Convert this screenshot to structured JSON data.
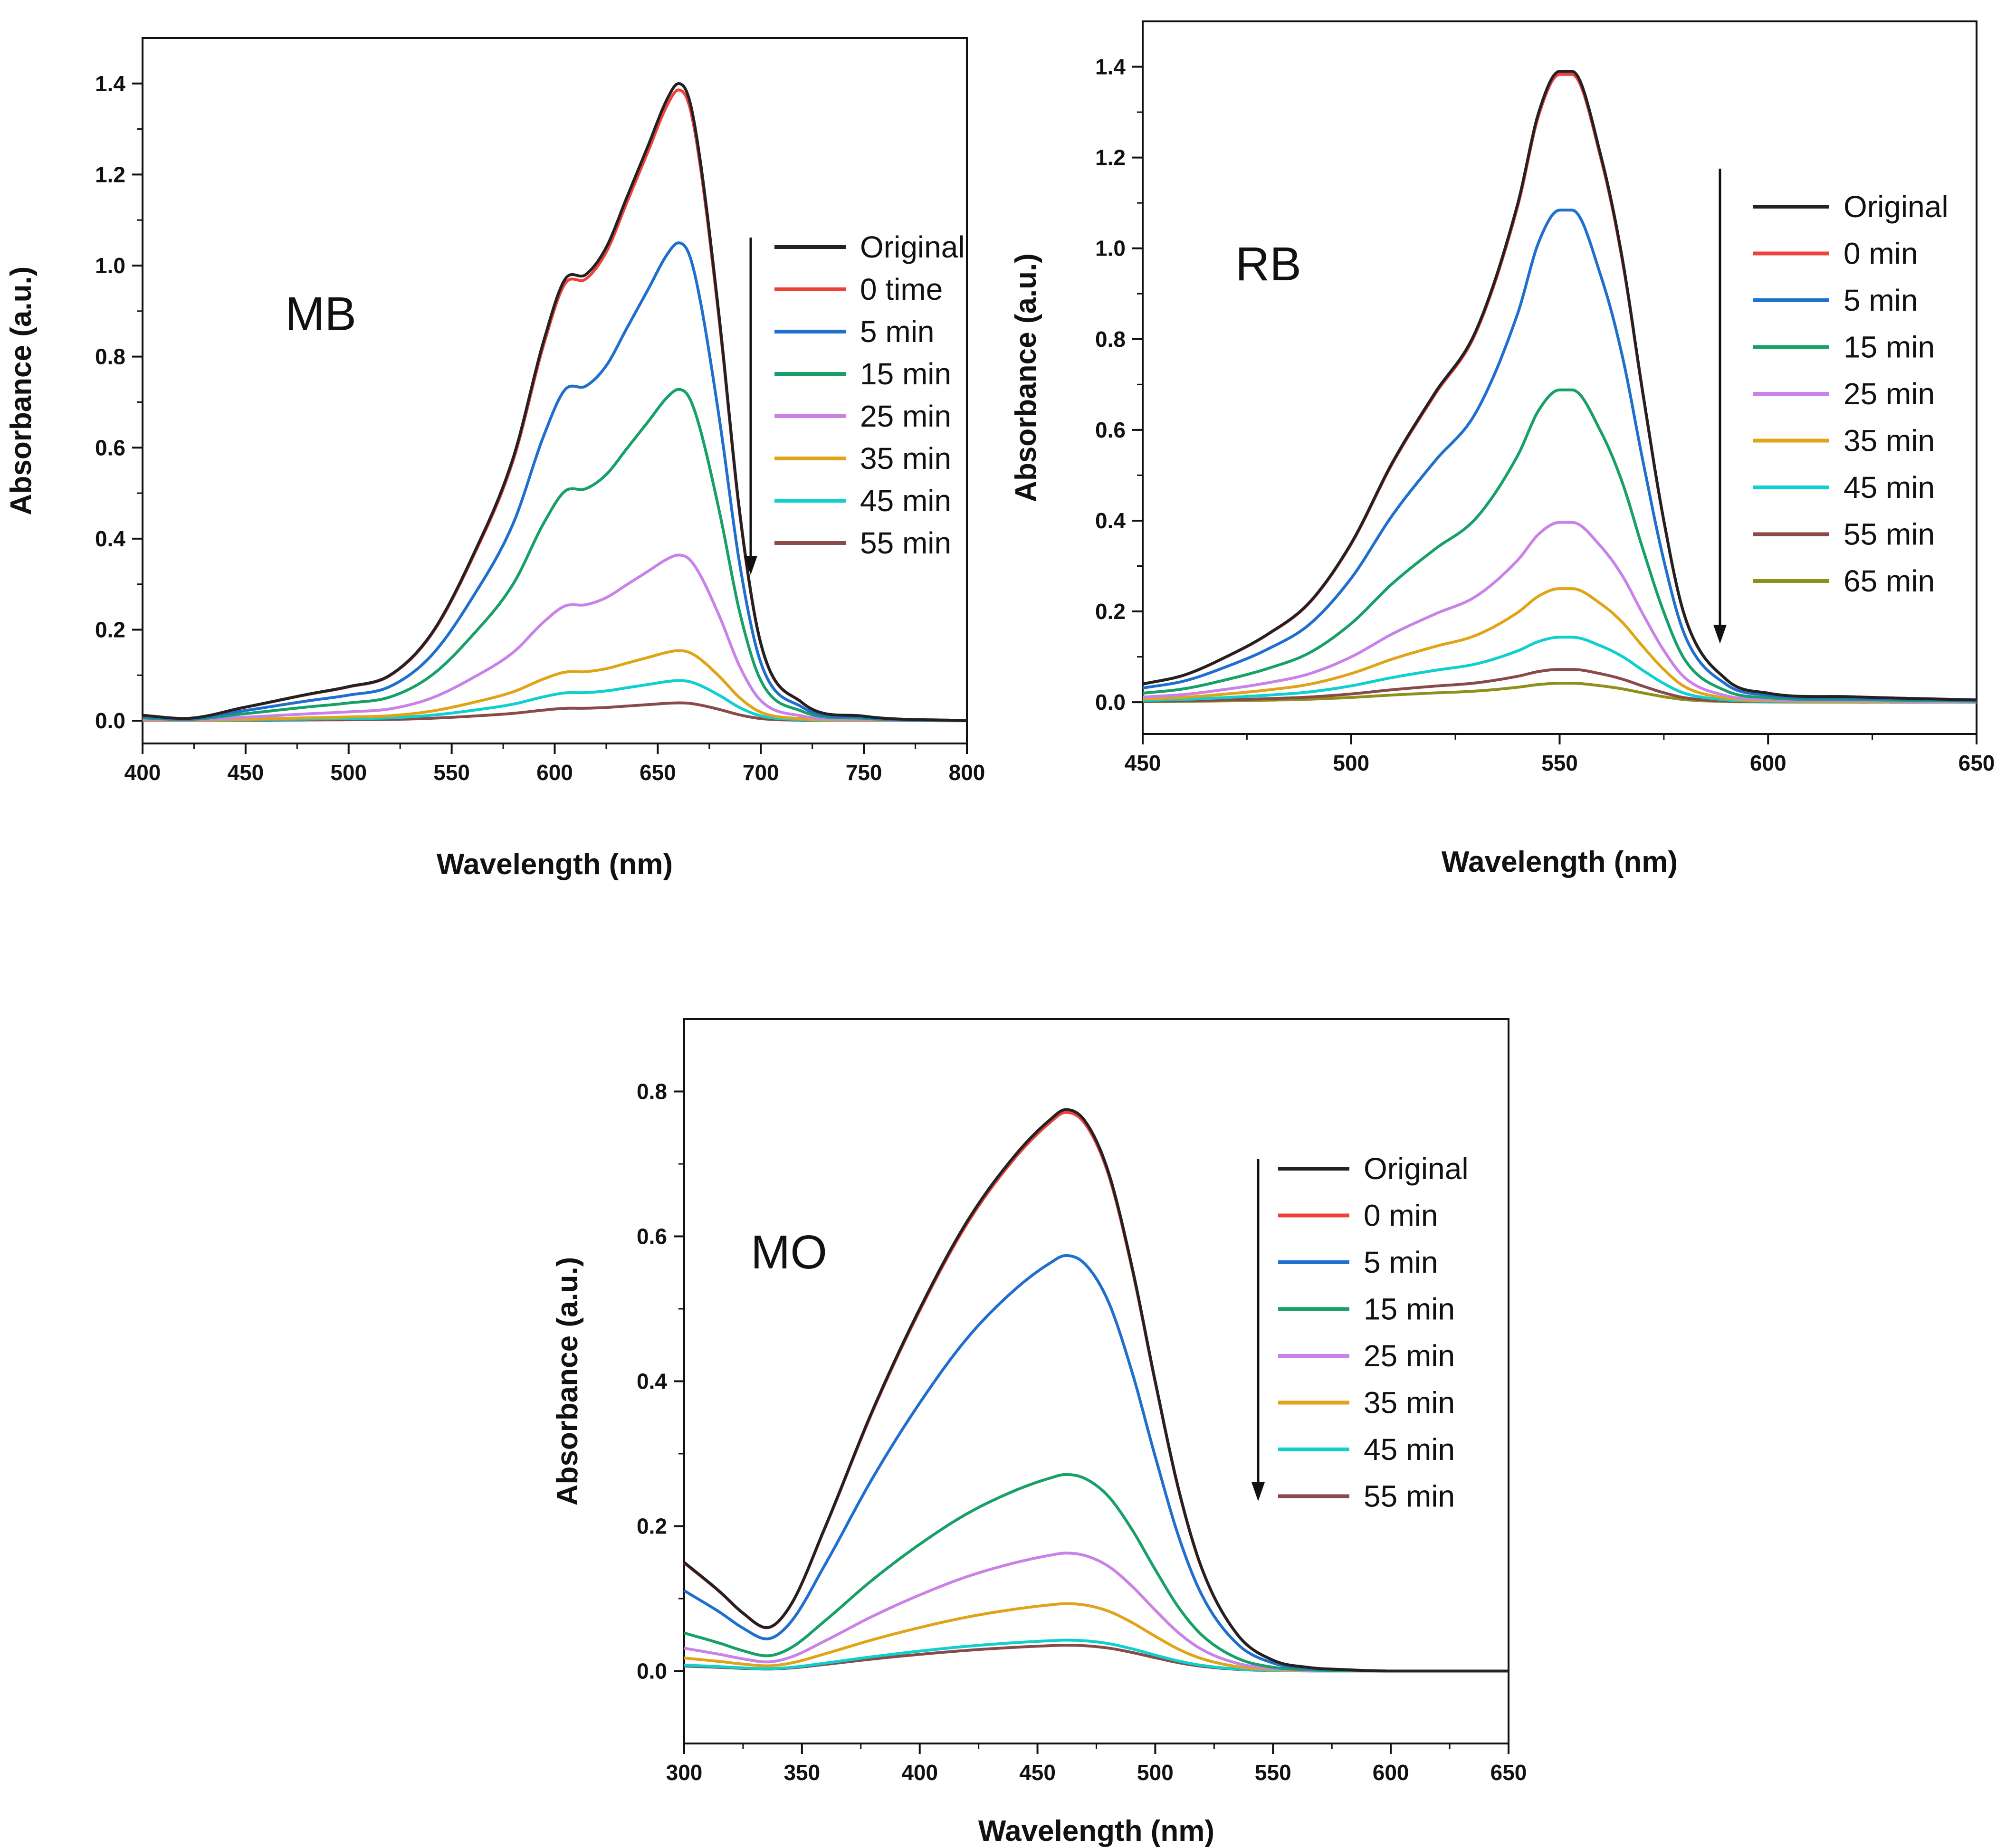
{
  "colors": {
    "Original": "#222222",
    "0 time": "#f0403a",
    "0 min": "#f0403a",
    "5 min": "#1f6fce",
    "15 min": "#17a067",
    "25 min": "#c982e8",
    "35 min": "#e0a417",
    "45 min": "#0fcfcf",
    "55 min": "#8a4a4a",
    "65 min": "#8f8f1c"
  },
  "chart_data": [
    {
      "type": "line",
      "title": "MB",
      "xlabel": "Wavelength (nm)",
      "ylabel": "Absorbance (a.u.)",
      "xlim": [
        400,
        800
      ],
      "ylim": [
        -0.05,
        1.5
      ],
      "xticks": [
        400,
        450,
        500,
        550,
        600,
        650,
        700,
        750,
        800
      ],
      "yticks": [
        0.0,
        0.2,
        0.4,
        0.6,
        0.8,
        1.0,
        1.2,
        1.4
      ],
      "arrow_direction": "down",
      "series": [
        {
          "name": "Original",
          "scale": 1.0
        },
        {
          "name": "0 time",
          "scale": 0.99
        },
        {
          "name": "5 min",
          "scale": 0.75
        },
        {
          "name": "15 min",
          "scale": 0.52
        },
        {
          "name": "25 min",
          "scale": 0.26
        },
        {
          "name": "35 min",
          "scale": 0.11
        },
        {
          "name": "45 min",
          "scale": 0.063
        },
        {
          "name": "55 min",
          "scale": 0.028
        }
      ],
      "profile": {
        "x": [
          400,
          420,
          450,
          480,
          500,
          520,
          540,
          560,
          580,
          595,
          605,
          615,
          625,
          635,
          645,
          655,
          660,
          665,
          670,
          680,
          690,
          700,
          720,
          750,
          800
        ],
        "y": [
          0.012,
          0.005,
          0.03,
          0.058,
          0.075,
          0.1,
          0.19,
          0.36,
          0.58,
          0.84,
          0.97,
          0.98,
          1.04,
          1.15,
          1.26,
          1.37,
          1.4,
          1.37,
          1.25,
          0.88,
          0.45,
          0.17,
          0.04,
          0.01,
          0.0
        ]
      }
    },
    {
      "type": "line",
      "title": "RB",
      "xlabel": "Wavelength (nm)",
      "ylabel": "Absorbance (a.u.)",
      "xlim": [
        450,
        650
      ],
      "ylim": [
        -0.07,
        1.5
      ],
      "xticks": [
        450,
        500,
        550,
        600,
        650
      ],
      "yticks": [
        0.0,
        0.2,
        0.4,
        0.6,
        0.8,
        1.0,
        1.2,
        1.4
      ],
      "arrow_direction": "down",
      "series": [
        {
          "name": "Original",
          "scale": 1.0
        },
        {
          "name": "0 min",
          "scale": 0.995
        },
        {
          "name": "5 min",
          "scale": 0.78
        },
        {
          "name": "15 min",
          "scale": 0.495
        },
        {
          "name": "25 min",
          "scale": 0.285
        },
        {
          "name": "35 min",
          "scale": 0.18
        },
        {
          "name": "45 min",
          "scale": 0.103
        },
        {
          "name": "55 min",
          "scale": 0.052
        },
        {
          "name": "65 min",
          "scale": 0.03
        }
      ],
      "profile": {
        "x": [
          450,
          460,
          470,
          480,
          490,
          500,
          510,
          520,
          530,
          540,
          545,
          550,
          553,
          560,
          565,
          570,
          575,
          580,
          590,
          600,
          620,
          650
        ],
        "y": [
          0.04,
          0.06,
          0.1,
          0.15,
          0.22,
          0.35,
          0.53,
          0.68,
          0.82,
          1.1,
          1.3,
          1.39,
          1.39,
          1.2,
          0.98,
          0.68,
          0.4,
          0.19,
          0.05,
          0.02,
          0.012,
          0.005
        ]
      }
    },
    {
      "type": "line",
      "title": "MO",
      "xlabel": "Wavelength (nm)",
      "ylabel": "Absorbance (a.u.)",
      "xlim": [
        300,
        650
      ],
      "ylim": [
        -0.1,
        0.9
      ],
      "xticks": [
        300,
        350,
        400,
        450,
        500,
        550,
        600,
        650
      ],
      "yticks": [
        0.0,
        0.2,
        0.4,
        0.6,
        0.8
      ],
      "arrow_direction": "down",
      "series": [
        {
          "name": "Original",
          "scale": 1.0
        },
        {
          "name": "0 min",
          "scale": 0.995
        },
        {
          "name": "5 min",
          "scale": 0.74
        },
        {
          "name": "15 min",
          "scale": 0.35
        },
        {
          "name": "25 min",
          "scale": 0.21
        },
        {
          "name": "35 min",
          "scale": 0.12
        },
        {
          "name": "45 min",
          "scale": 0.055
        },
        {
          "name": "55 min",
          "scale": 0.046
        }
      ],
      "profile": {
        "x": [
          300,
          315,
          325,
          335,
          345,
          360,
          380,
          400,
          420,
          440,
          455,
          462,
          470,
          480,
          490,
          500,
          510,
          520,
          535,
          550,
          565,
          580,
          600,
          650
        ],
        "y": [
          0.15,
          0.11,
          0.08,
          0.06,
          0.09,
          0.2,
          0.36,
          0.5,
          0.62,
          0.71,
          0.76,
          0.775,
          0.76,
          0.69,
          0.56,
          0.4,
          0.25,
          0.14,
          0.05,
          0.015,
          0.005,
          0.002,
          0.0,
          0.0
        ]
      }
    }
  ]
}
